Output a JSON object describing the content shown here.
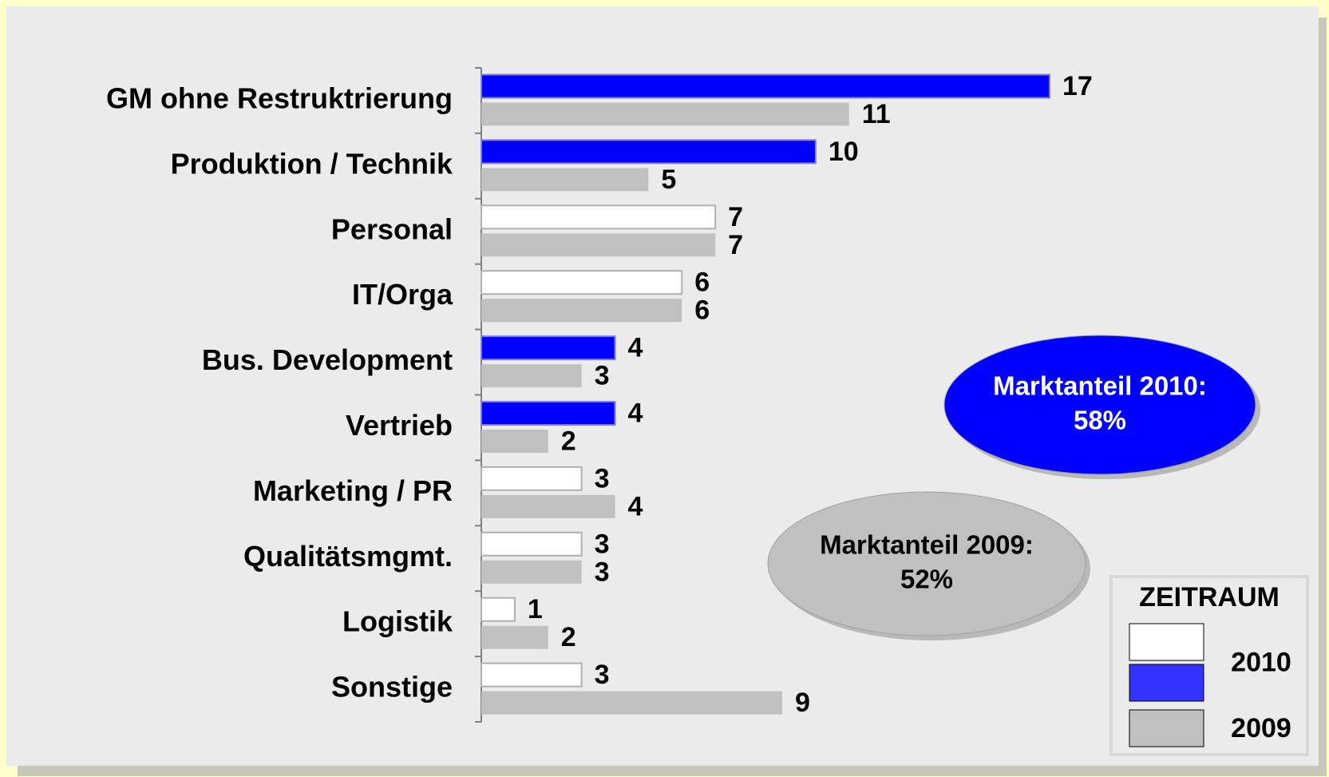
{
  "chart_data": {
    "type": "bar",
    "orientation": "horizontal",
    "categories": [
      "GM ohne Restruktrierung",
      "Produktion / Technik",
      "Personal",
      "IT/Orga",
      "Bus. Development",
      "Vertrieb",
      "Marketing  / PR",
      "Qualitätsmgmt.",
      "Logistik",
      "Sonstige"
    ],
    "series": [
      {
        "name": "2010",
        "colors": [
          "#0000ff",
          "#0000ff",
          "#ffffff",
          "#ffffff",
          "#0000ff",
          "#0000ff",
          "#ffffff",
          "#ffffff",
          "#ffffff",
          "#ffffff"
        ],
        "values": [
          17,
          10,
          7,
          6,
          4,
          4,
          3,
          3,
          1,
          3
        ]
      },
      {
        "name": "2009",
        "color": "#c0c0c0",
        "values": [
          11,
          5,
          7,
          6,
          3,
          2,
          4,
          3,
          2,
          9
        ]
      }
    ],
    "legend": {
      "title": "ZEITRAUM",
      "position": "lower right"
    },
    "annotations": [
      {
        "label": "Marktanteil 2010:",
        "value": "58%",
        "color": "#0000ff",
        "text_color": "#ffffff"
      },
      {
        "label": "Marktanteil 2009:",
        "value": "52%",
        "color": "#c0c0c0",
        "text_color": "#000000"
      }
    ]
  }
}
